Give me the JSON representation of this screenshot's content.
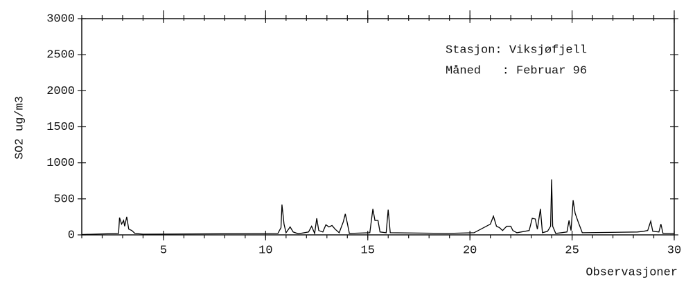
{
  "chart_data": {
    "type": "line",
    "ylabel": "SO2 ug/m3",
    "xlabel": "Observasjoner",
    "annotations": [
      "Stasjon: Viksjøfjell",
      "Måned   : Februar 96"
    ],
    "xlim": [
      1,
      30
    ],
    "ylim": [
      0,
      3000
    ],
    "xticks": [
      5,
      10,
      15,
      20,
      25,
      30
    ],
    "xminorticks": [
      1,
      2,
      3,
      4,
      5,
      6,
      7,
      8,
      9,
      10,
      11,
      12,
      13,
      14,
      15,
      16,
      17,
      18,
      19,
      20,
      21,
      22,
      23,
      24,
      25,
      26,
      27,
      28,
      29,
      30
    ],
    "yticks": [
      0,
      500,
      1000,
      1500,
      2000,
      2500,
      3000
    ],
    "grid": false,
    "series": [
      {
        "color": "#000000",
        "x": [
          1.0,
          2.8,
          2.85,
          2.95,
          3.05,
          3.1,
          3.2,
          3.3,
          3.45,
          3.6,
          4.0,
          10.6,
          10.75,
          10.8,
          10.9,
          11.0,
          11.2,
          11.35,
          11.6,
          12.1,
          12.25,
          12.4,
          12.5,
          12.6,
          12.8,
          12.95,
          13.1,
          13.25,
          13.4,
          13.6,
          13.8,
          13.9,
          14.0,
          14.1,
          15.1,
          15.25,
          15.35,
          15.5,
          15.6,
          15.9,
          16.0,
          16.1,
          18.9,
          20.2,
          21.0,
          21.15,
          21.3,
          21.45,
          21.6,
          21.8,
          22.0,
          22.1,
          22.3,
          22.9,
          23.05,
          23.2,
          23.3,
          23.45,
          23.55,
          23.8,
          23.95,
          24.0,
          24.05,
          24.2,
          24.75,
          24.85,
          24.95,
          25.05,
          25.15,
          25.3,
          25.5,
          28.2,
          28.5,
          28.7,
          28.85,
          28.95,
          29.25,
          29.35,
          29.45,
          30.0
        ],
        "values": [
          5,
          20,
          240,
          150,
          200,
          120,
          250,
          80,
          60,
          20,
          10,
          20,
          100,
          420,
          150,
          30,
          110,
          40,
          15,
          40,
          120,
          20,
          230,
          60,
          40,
          140,
          110,
          130,
          80,
          30,
          180,
          290,
          160,
          20,
          30,
          360,
          200,
          200,
          40,
          30,
          350,
          30,
          20,
          30,
          150,
          260,
          120,
          100,
          60,
          120,
          120,
          60,
          30,
          60,
          230,
          220,
          80,
          360,
          30,
          50,
          120,
          770,
          120,
          20,
          40,
          200,
          60,
          480,
          300,
          180,
          30,
          40,
          50,
          60,
          190,
          50,
          40,
          150,
          20,
          20
        ]
      }
    ]
  }
}
